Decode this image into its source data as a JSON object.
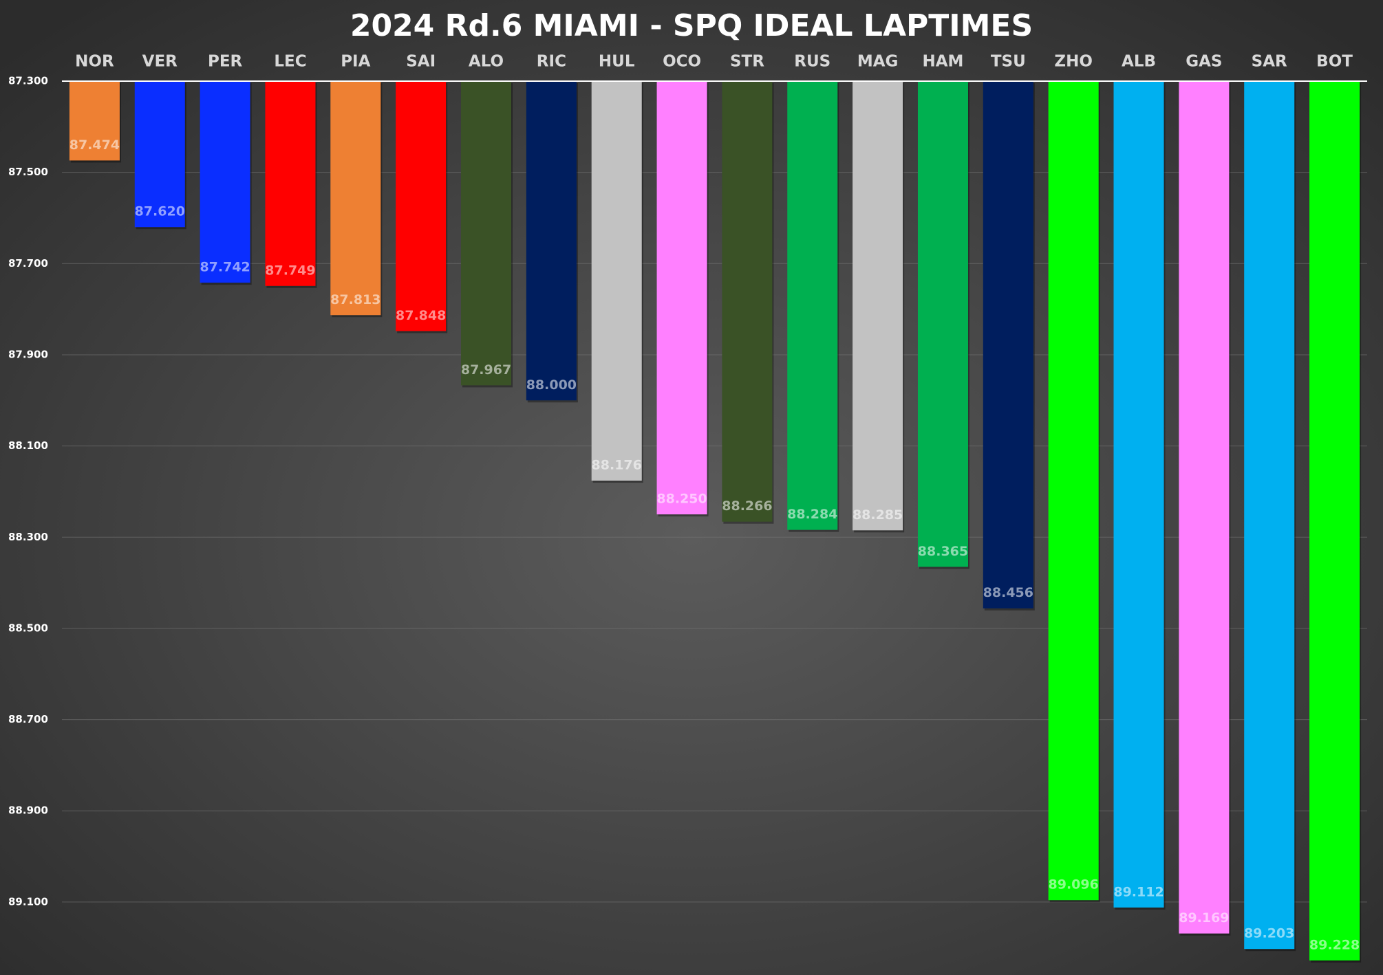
{
  "chart_data": {
    "type": "bar",
    "title": "2024 Rd.6 MIAMI - SPQ IDEAL LAPTIMES",
    "categories": [
      "NOR",
      "VER",
      "PER",
      "LEC",
      "PIA",
      "SAI",
      "ALO",
      "RIC",
      "HUL",
      "OCO",
      "STR",
      "RUS",
      "MAG",
      "HAM",
      "TSU",
      "ZHO",
      "ALB",
      "GAS",
      "SAR",
      "BOT"
    ],
    "values": [
      87.474,
      87.62,
      87.742,
      87.749,
      87.813,
      87.848,
      87.967,
      88.0,
      88.176,
      88.25,
      88.266,
      88.284,
      88.285,
      88.365,
      88.456,
      89.096,
      89.112,
      89.169,
      89.203,
      89.228
    ],
    "value_labels": [
      "87.474",
      "87.620",
      "87.742",
      "87.749",
      "87.813",
      "87.848",
      "87.967",
      "88.000",
      "88.176",
      "88.250",
      "88.266",
      "88.284",
      "88.285",
      "88.365",
      "88.456",
      "89.096",
      "89.112",
      "89.169",
      "89.203",
      "89.228"
    ],
    "colors": [
      "#ee8033",
      "#0a2eff",
      "#0a2eff",
      "#ff0000",
      "#ee8033",
      "#ff0000",
      "#3a5226",
      "#001e5e",
      "#c2c2c2",
      "#ff80ff",
      "#3a5226",
      "#00b050",
      "#c2c2c2",
      "#00b050",
      "#001e5e",
      "#00ff00",
      "#00b0f0",
      "#ff80ff",
      "#00b0f0",
      "#00ff00"
    ],
    "ylim": [
      87.3,
      89.26
    ],
    "inverted": true,
    "yticks": [
      {
        "value": 87.3,
        "label": "87.300"
      },
      {
        "value": 87.5,
        "label": "87.500"
      },
      {
        "value": 87.7,
        "label": "87.700"
      },
      {
        "value": 87.9,
        "label": "87.900"
      },
      {
        "value": 88.1,
        "label": "88.100"
      },
      {
        "value": 88.3,
        "label": "88.300"
      },
      {
        "value": 88.5,
        "label": "88.500"
      },
      {
        "value": 88.7,
        "label": "88.700"
      },
      {
        "value": 88.9,
        "label": "88.900"
      },
      {
        "value": 89.1,
        "label": "89.100"
      }
    ],
    "grid": true
  }
}
